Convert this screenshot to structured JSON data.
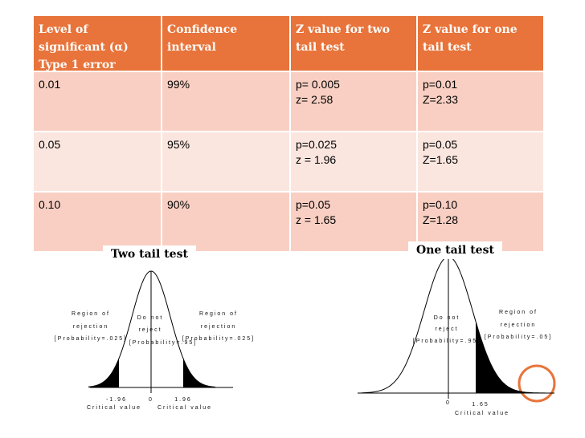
{
  "table": {
    "header": [
      [
        "Level of",
        "significant (α)",
        "Type 1 error"
      ],
      [
        "Confidence",
        "interval"
      ],
      [
        "Z value for two",
        "tail test"
      ],
      [
        "Z value for one",
        "tail test"
      ]
    ],
    "rows": [
      [
        [
          "0.01"
        ],
        [
          "99%"
        ],
        [
          "p= 0.005",
          "z= 2.58"
        ],
        [
          "p=0.01",
          "Z=2.33"
        ]
      ],
      [
        [
          "0.05"
        ],
        [
          "95%"
        ],
        [
          "p=0.025",
          "z = 1.96"
        ],
        [
          "p=0.05",
          "Z=1.65"
        ]
      ],
      [
        [
          "0.10"
        ],
        [
          "90%"
        ],
        [
          "p=0.05",
          "z = 1.65"
        ],
        [
          "p=0.10",
          "Z=1.28"
        ]
      ]
    ]
  },
  "diagrams": [
    {
      "title": "Two tail test",
      "labels": [
        "Region of",
        "rejection",
        "[Probability=.025]",
        "Do not",
        "reject",
        "[Probability=.95]",
        "Region of",
        "rejection",
        "[Probability=.025]",
        "-1.96",
        "Critical value",
        "0",
        "1.96",
        "Critical value"
      ]
    },
    {
      "title": "One tail test",
      "labels": [
        "Do not",
        "reject",
        "[Probability=.95]",
        "Region of",
        "rejection",
        "[Probability=.05]",
        "0",
        "1.65",
        "Critical value"
      ]
    }
  ]
}
